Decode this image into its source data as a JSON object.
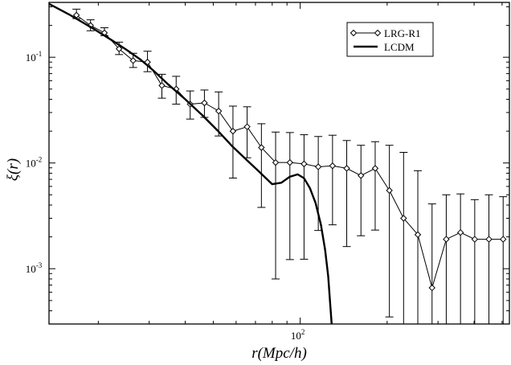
{
  "chart_data": {
    "type": "line",
    "xlabel": "r(Mpc/h)",
    "ylabel": "ξ(r)",
    "xscale": "log",
    "yscale": "log",
    "xlim": [
      13.5,
      530
    ],
    "ylim": [
      0.0003,
      0.33
    ],
    "grid": false,
    "legend_position": "top-right",
    "x_ticks": [
      {
        "value": 100,
        "label": "10",
        "exp": "2"
      }
    ],
    "y_ticks": [
      {
        "value": 0.1,
        "label": "10",
        "exp": "-1"
      },
      {
        "value": 0.01,
        "label": "10",
        "exp": "-2"
      },
      {
        "value": 0.001,
        "label": "10",
        "exp": "-3"
      }
    ],
    "series": [
      {
        "name": "LRG-R1",
        "marker": "diamond",
        "color": "#000000",
        "x": [
          16.8,
          18.8,
          21.0,
          23.6,
          26.4,
          29.6,
          33.2,
          37.2,
          41.6,
          46.6,
          52.2,
          58.5,
          65.5,
          73.4,
          82.2,
          92.1,
          103.1,
          115.5,
          129.4,
          144.9,
          162.3,
          181.8,
          203.6,
          228.0,
          255.4,
          286.1,
          320.4,
          358.9,
          402.0,
          450.2,
          504.3
        ],
        "y": [
          0.25,
          0.2,
          0.17,
          0.12,
          0.093,
          0.09,
          0.054,
          0.05,
          0.036,
          0.037,
          0.031,
          0.02,
          0.022,
          0.014,
          0.0101,
          0.0101,
          0.0098,
          0.0092,
          0.0094,
          0.0089,
          0.0076,
          0.0089,
          0.0055,
          0.003,
          0.0021,
          0.00066,
          0.0019,
          0.0022,
          0.0019,
          0.0019,
          0.0019
        ],
        "y_err_low": [
          0.232,
          0.178,
          0.16,
          0.106,
          0.08,
          0.073,
          0.041,
          0.036,
          0.026,
          0.027,
          0.018,
          0.0072,
          0.0112,
          0.0038,
          0.0008,
          0.00122,
          0.00123,
          0.0023,
          0.0026,
          0.00162,
          0.00205,
          0.00232,
          0.00035,
          0.00017,
          0.00016,
          0.00012,
          0.00011,
          0.00014,
          0.00013,
          0.00012,
          0.00012
        ],
        "y_err_high": [
          0.285,
          0.226,
          0.19,
          0.139,
          0.109,
          0.114,
          0.069,
          0.066,
          0.048,
          0.049,
          0.047,
          0.0345,
          0.034,
          0.0235,
          0.0196,
          0.0194,
          0.0185,
          0.0178,
          0.0183,
          0.0163,
          0.0147,
          0.0159,
          0.0147,
          0.0126,
          0.00845,
          0.0041,
          0.005,
          0.0051,
          0.0045,
          0.005,
          0.0048
        ]
      },
      {
        "name": "LCDM",
        "marker": "none",
        "color": "#000000",
        "x": [
          13.5,
          16.0,
          19.0,
          22.0,
          25.0,
          28.0,
          31.0,
          35.0,
          40.0,
          46.0,
          52.0,
          58.0,
          65.0,
          72.0,
          80.0,
          86.0,
          92.0,
          98.0,
          103.0,
          108.0,
          113.0,
          118.0,
          122.0,
          125.0,
          128.5
        ],
        "y": [
          0.32,
          0.25,
          0.19,
          0.148,
          0.118,
          0.095,
          0.075,
          0.055,
          0.04,
          0.028,
          0.02,
          0.0145,
          0.0108,
          0.0083,
          0.0063,
          0.0065,
          0.0074,
          0.0078,
          0.0072,
          0.0058,
          0.0042,
          0.0026,
          0.0015,
          0.00085,
          0.0003
        ]
      }
    ]
  }
}
